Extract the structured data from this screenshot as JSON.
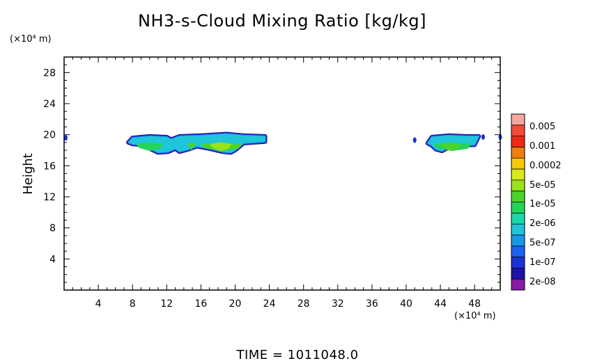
{
  "chart_data": {
    "type": "heatmap",
    "title": "NH3-s-Cloud Mixing Ratio [kg/kg]",
    "ylabel": "Height",
    "y_unit_label": "(×10⁴ m)",
    "x_unit_label": "(×10⁴ m)",
    "time_label": "TIME = 1011048.0",
    "xlim": [
      0,
      51
    ],
    "ylim": [
      0,
      30
    ],
    "x_ticks": [
      4,
      8,
      12,
      16,
      20,
      24,
      28,
      32,
      36,
      40,
      44,
      48
    ],
    "y_ticks": [
      4,
      8,
      12,
      16,
      20,
      24,
      28
    ],
    "colorbar": {
      "labels": [
        "0.005",
        "0.001",
        "0.0002",
        "5e-05",
        "1e-05",
        "2e-06",
        "5e-07",
        "1e-07",
        "2e-08"
      ],
      "colors": [
        "#f4a7a0",
        "#f44a3a",
        "#ee2a14",
        "#f07d10",
        "#f5c80a",
        "#d8e81a",
        "#9be21e",
        "#4bd32a",
        "#24d45a",
        "#1ad8a8",
        "#1ec6d8",
        "#1a96e8",
        "#1a62f0",
        "#1a32d6",
        "#1e12a6",
        "#8a1aa6"
      ]
    },
    "regions": [
      {
        "name": "cloud-band-left",
        "outline": [
          [
            7.5,
            19.0
          ],
          [
            8.0,
            19.6
          ],
          [
            10.0,
            19.8
          ],
          [
            12.0,
            19.7
          ],
          [
            12.5,
            19.4
          ],
          [
            13.5,
            19.8
          ],
          [
            16.0,
            19.9
          ],
          [
            19.0,
            20.1
          ],
          [
            21.0,
            19.9
          ],
          [
            23.5,
            19.8
          ],
          [
            23.5,
            19.1
          ],
          [
            21.0,
            18.9
          ],
          [
            20.0,
            18.0
          ],
          [
            19.5,
            17.7
          ],
          [
            18.5,
            17.8
          ],
          [
            17.0,
            18.2
          ],
          [
            15.5,
            18.5
          ],
          [
            14.5,
            18.1
          ],
          [
            13.5,
            17.8
          ],
          [
            13.0,
            18.2
          ],
          [
            12.2,
            17.8
          ],
          [
            11.0,
            17.7
          ],
          [
            10.0,
            18.2
          ],
          [
            9.0,
            18.7
          ],
          [
            8.0,
            18.8
          ]
        ]
      },
      {
        "name": "cloud-band-right",
        "outline": [
          [
            42.5,
            18.9
          ],
          [
            43.0,
            19.7
          ],
          [
            45.0,
            19.9
          ],
          [
            47.0,
            19.8
          ],
          [
            48.5,
            19.8
          ],
          [
            48.0,
            18.7
          ],
          [
            46.5,
            18.6
          ],
          [
            45.0,
            18.4
          ],
          [
            44.2,
            17.9
          ],
          [
            43.5,
            18.1
          ],
          [
            43.0,
            18.6
          ]
        ]
      }
    ],
    "specks": [
      [
        41.0,
        19.3
      ],
      [
        49.0,
        19.7
      ],
      [
        51.0,
        19.7
      ],
      [
        0.2,
        19.6
      ]
    ]
  }
}
